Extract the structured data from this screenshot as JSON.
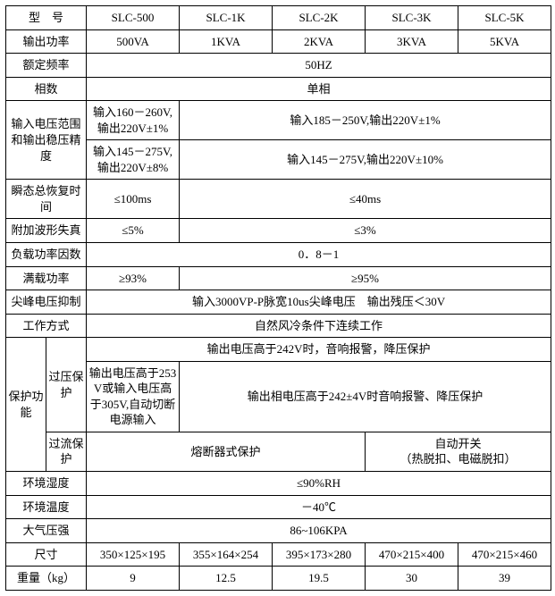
{
  "columns": {
    "label_w": 45,
    "sublabel_w": 45,
    "data_w": 104
  },
  "rows": {
    "model": {
      "label": "型　号",
      "vals": [
        "SLC-500",
        "SLC-1K",
        "SLC-2K",
        "SLC-3K",
        "SLC-5K"
      ]
    },
    "output_power": {
      "label": "输出功率",
      "vals": [
        "500VA",
        "1KVA",
        "2KVA",
        "3KVA",
        "5KVA"
      ]
    },
    "rated_freq": {
      "label": "额定频率",
      "val": "50HZ"
    },
    "phase": {
      "label": "相数",
      "val": "单相"
    },
    "input_range": {
      "label": "输入电压范围和输出稳压精度",
      "row1_c1": "输入160－260V,\n输出220V±1%",
      "row1_rest": "输入185－250V,输出220V±1%",
      "row2_c1": "输入145－275V,\n输出220V±8%",
      "row2_rest": "输入145－275V,输出220V±10%"
    },
    "transient": {
      "label": "瞬态总恢复时间",
      "c1": "≤100ms",
      "rest": "≤40ms"
    },
    "wave_dist": {
      "label": "附加波形失真",
      "c1": "≤5%",
      "rest": "≤3%"
    },
    "pf": {
      "label": "负载功率因数",
      "val": "0．8－1"
    },
    "overload": {
      "label": "满载功率",
      "c1": "≥93%",
      "rest": "≥95%"
    },
    "spike": {
      "label": "尖峰电压抑制",
      "val": "输入3000VP-P脉宽10us尖峰电压　输出残压＜30V"
    },
    "work_mode": {
      "label": "工作方式",
      "val": "自然风冷条件下连续工作"
    },
    "protect": {
      "label": "保护功能",
      "ov_label": "过压保护",
      "oc_label": "过流保护",
      "ov_row1": "输出电压高于242V时，音响报警，降压保护",
      "ov_row2_c1": "输出电压高于253V或输入电压高于305V,自动切断电源输入",
      "ov_row2_rest": "输出相电压高于242±4V时音响报警、降压保护",
      "oc_c1": "熔断器式保护",
      "oc_rest": "自动开关\n（热脱扣、电磁脱扣）"
    },
    "humidity": {
      "label": "环境湿度",
      "val": "≤90%RH"
    },
    "temp": {
      "label": "环境温度",
      "val": "－40℃"
    },
    "pressure": {
      "label": "大气压强",
      "val": "86~106KPA"
    },
    "size": {
      "label": "尺寸",
      "vals": [
        "350×125×195",
        "355×164×254",
        "395×173×280",
        "470×215×400",
        "470×215×460"
      ]
    },
    "weight": {
      "label": "重量（kg）",
      "vals": [
        "9",
        "12.5",
        "19.5",
        "30",
        "39"
      ]
    }
  }
}
